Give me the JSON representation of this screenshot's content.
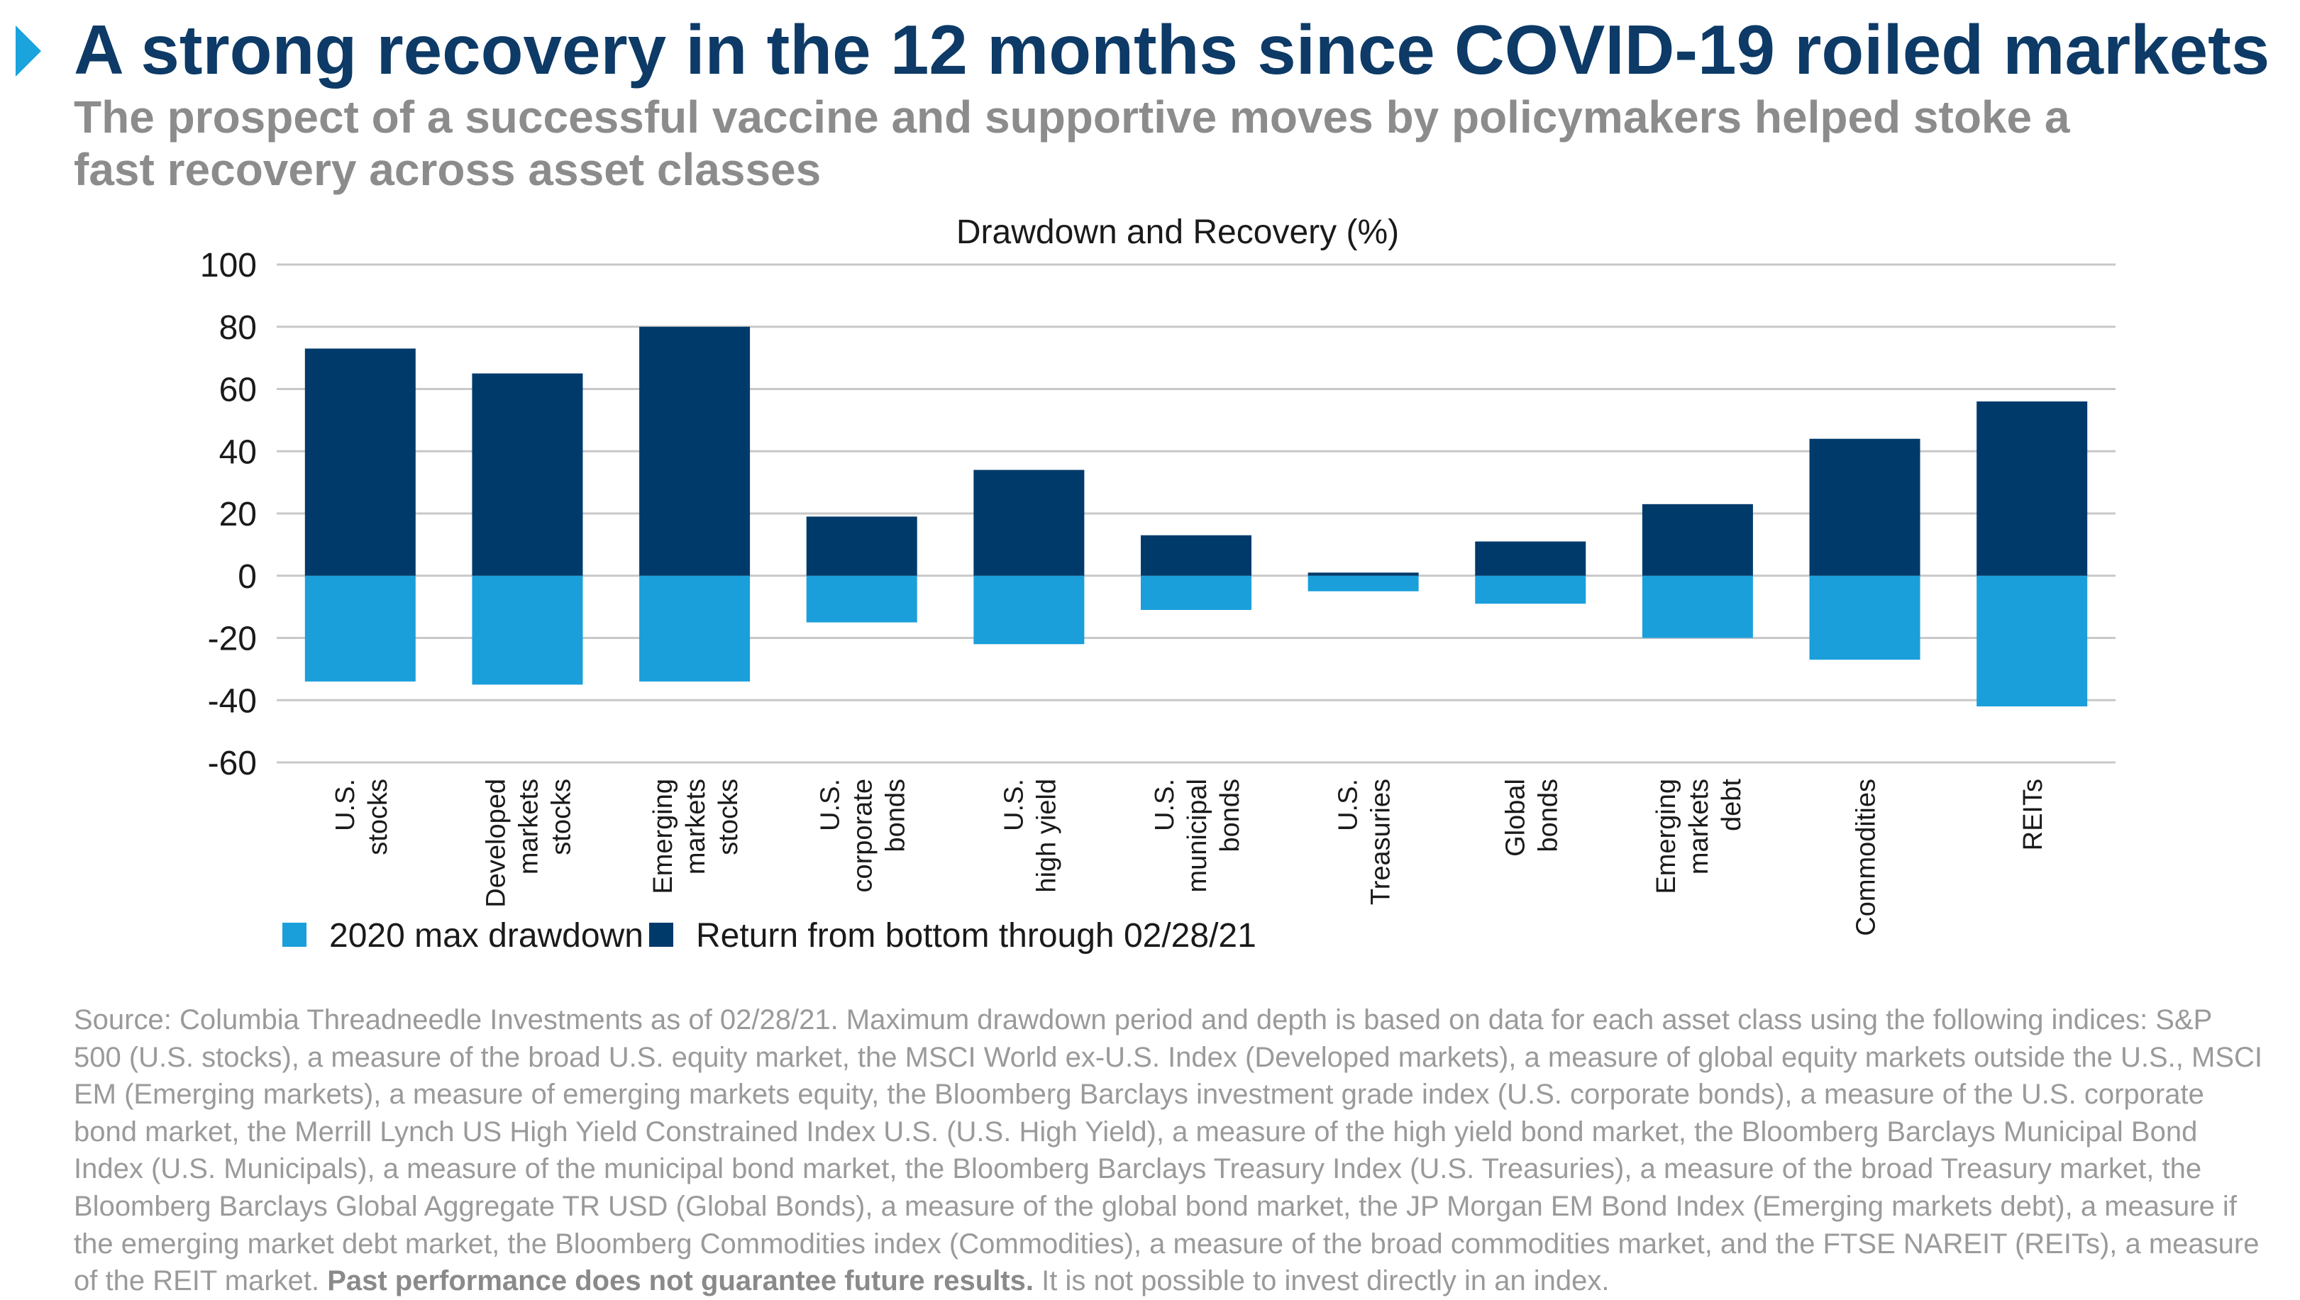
{
  "header": {
    "title": "A strong recovery in the 12 months since COVID-19 roiled markets",
    "subtitle": "The prospect of a successful vaccine and supportive moves by policymakers helped stoke a fast recovery across asset classes"
  },
  "colors": {
    "title": "#0d3a66",
    "accent": "#1aa3dd",
    "drawdown": "#1a9fdb",
    "recovery": "#003a6b",
    "subtitle": "#8c8c8c",
    "gridline": "#c8c8c8"
  },
  "chart_data": {
    "type": "bar",
    "stacked": true,
    "title": "Drawdown and Recovery (%)",
    "xlabel": "",
    "ylabel": "",
    "ylim": [
      -60,
      100
    ],
    "yticks": [
      100,
      80,
      60,
      40,
      20,
      0,
      -20,
      -40,
      -60
    ],
    "grid": true,
    "legend": "bottom-left",
    "categories": [
      [
        "U.S.",
        "stocks"
      ],
      [
        "Developed",
        "markets",
        "stocks"
      ],
      [
        "Emerging",
        "markets",
        "stocks"
      ],
      [
        "U.S.",
        "corporate",
        "bonds"
      ],
      [
        "U.S.",
        "high yield"
      ],
      [
        "U.S.",
        "municipal",
        "bonds"
      ],
      [
        "U.S.",
        "Treasuries"
      ],
      [
        "Global",
        "bonds"
      ],
      [
        "Emerging",
        "markets",
        "debt"
      ],
      [
        "Commodities"
      ],
      [
        "REITs"
      ]
    ],
    "series": [
      {
        "name": "2020 max drawdown",
        "color": "#1a9fdb",
        "values": [
          -34,
          -35,
          -34,
          -15,
          -22,
          -11,
          -5,
          -9,
          -20,
          -27,
          -42
        ]
      },
      {
        "name": "Return from bottom through 02/28/21",
        "color": "#003a6b",
        "values": [
          73,
          65,
          80,
          19,
          34,
          13,
          1,
          11,
          23,
          44,
          56
        ]
      }
    ]
  },
  "source": {
    "text": "Source: Columbia Threadneedle Investments as of 02/28/21. Maximum drawdown period and depth is based on data for each asset class using the following indices: S&P 500 (U.S. stocks), a measure of the broad U.S. equity market, the MSCI World ex-U.S. Index (Developed markets), a measure of global equity markets outside the U.S., MSCI EM (Emerging markets), a measure of emerging markets equity, the Bloomberg Barclays investment grade index (U.S. corporate bonds), a measure of the U.S. corporate bond market, the Merrill Lynch US High Yield Constrained Index U.S. (U.S. High Yield), a measure of the high yield bond market, the Bloomberg Barclays Municipal Bond Index (U.S. Municipals), a measure of the municipal bond market, the Bloomberg Barclays Treasury Index (U.S. Treasuries), a measure of the broad Treasury market, the Bloomberg Barclays Global Aggregate TR USD (Global Bonds), a measure of the global bond market, the JP Morgan EM Bond Index (Emerging markets debt), a measure if the emerging market debt market, the Bloomberg Commodities index (Commodities), a measure of the broad commodities market, and the FTSE NAREIT (REITs), a measure of the REIT market.",
    "disclaimer_bold": "Past performance does not guarantee future results.",
    "disclaimer_end": "It is not possible to invest directly in an index."
  }
}
